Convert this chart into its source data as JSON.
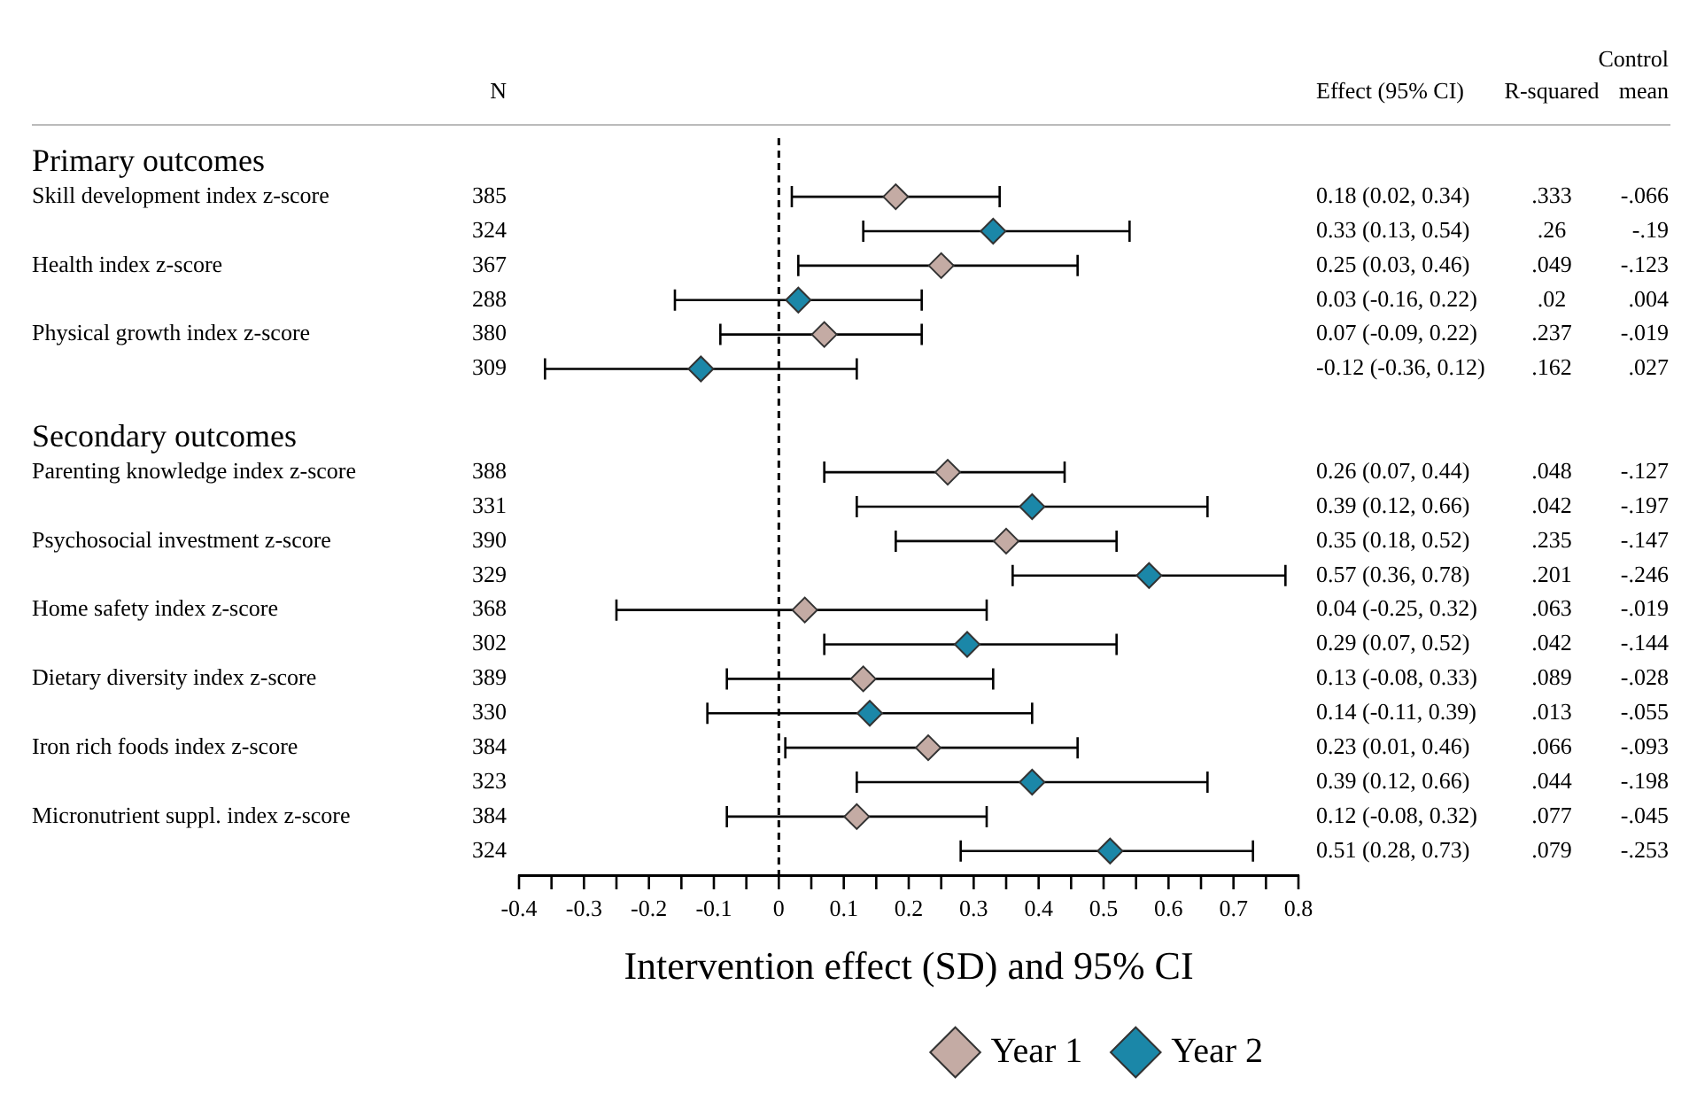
{
  "chart_data": {
    "type": "scatter",
    "orientation": "horizontal",
    "xlabel": "Intervention effect (SD) and 95% CI",
    "marker": "diamond",
    "legend": "bottom right",
    "categories": [
      null,
      "Skill development index z-score",
      null,
      "Health index z-score",
      null,
      "Physical growth index z-score",
      null,
      null,
      null,
      "Parenting knowledge index z-score",
      null,
      "Psychosocial investment z-score",
      null,
      "Home safety index z-score",
      null,
      "Dietary diversity index z-score",
      null,
      "Iron rich foods index z-score",
      null,
      "Micronutrient suppl. index z-score",
      null
    ],
    "series": [
      {
        "name": "Year 1",
        "color": "#c4aba4",
        "values": [
          null,
          0.18,
          null,
          0.25,
          null,
          0.07,
          null,
          null,
          null,
          0.26,
          null,
          0.35,
          null,
          0.04,
          null,
          0.13,
          null,
          0.23,
          null,
          0.12,
          null
        ],
        "errors": [
          null,
          [
            0.02,
            0.34
          ],
          null,
          [
            0.03,
            0.46
          ],
          null,
          [
            -0.09,
            0.22
          ],
          null,
          null,
          null,
          [
            0.07,
            0.44
          ],
          null,
          [
            0.18,
            0.52
          ],
          null,
          [
            -0.25,
            0.32
          ],
          null,
          [
            -0.08,
            0.33
          ],
          null,
          [
            0.01,
            0.46
          ],
          null,
          [
            -0.08,
            0.32
          ],
          null
        ]
      },
      {
        "name": "Year 2",
        "color": "#1b87a8",
        "values": [
          null,
          null,
          0.33,
          null,
          0.03,
          null,
          -0.12,
          null,
          null,
          null,
          0.39,
          null,
          0.57,
          null,
          0.29,
          null,
          0.14,
          null,
          0.39,
          null,
          0.51
        ],
        "errors": [
          null,
          null,
          [
            0.13,
            0.54
          ],
          null,
          [
            -0.16,
            0.22
          ],
          null,
          [
            -0.36,
            0.12
          ],
          null,
          null,
          null,
          [
            0.12,
            0.66
          ],
          null,
          [
            0.36,
            0.78
          ],
          null,
          [
            0.07,
            0.52
          ],
          null,
          [
            -0.11,
            0.39
          ],
          null,
          [
            0.12,
            0.66
          ],
          null,
          [
            0.28,
            0.73
          ]
        ]
      }
    ],
    "xlim": [
      -0.4,
      0.8
    ],
    "xticks": [
      -0.4,
      {
        "value": -0.35,
        "label": null
      },
      -0.3,
      {
        "value": -0.25,
        "label": null
      },
      -0.2,
      {
        "value": -0.15,
        "label": null
      },
      -0.1,
      {
        "value": -0.05,
        "label": null
      },
      0,
      {
        "value": 0.05,
        "label": null
      },
      0.1,
      {
        "value": 0.15,
        "label": null
      },
      0.2,
      {
        "value": 0.25,
        "label": null
      },
      0.3,
      {
        "value": 0.35,
        "label": null
      },
      0.4,
      {
        "value": 0.45,
        "label": null
      },
      0.5,
      {
        "value": 0.55,
        "label": null
      },
      0.6,
      {
        "value": 0.65,
        "label": null
      },
      0.7,
      {
        "value": 0.75,
        "label": null
      },
      0.8
    ],
    "ref_lines": [
      {
        "axis": "x",
        "value": 0,
        "line_style": "dashed"
      }
    ],
    "annotations": [
      "N",
      "Effect (95% CI)",
      "R-squared",
      "Control mean",
      "Primary outcomes",
      "385",
      "0.18 (0.02, 0.34)",
      ".333",
      "-.066",
      "324",
      "0.33 (0.13, 0.54)",
      ".26",
      "-.19",
      "367",
      "0.25 (0.03, 0.46)",
      ".049",
      "-.123",
      "288",
      "0.03 (-0.16, 0.22)",
      ".02",
      ".004",
      "380",
      "0.07 (-0.09, 0.22)",
      ".237",
      "-.019",
      "309",
      "-0.12 (-0.36, 0.12)",
      ".162",
      ".027",
      "Secondary outcomes",
      "388",
      "0.26 (0.07, 0.44)",
      ".048",
      "-.127",
      "331",
      "0.39 (0.12, 0.66)",
      ".042",
      "-.197",
      "390",
      "0.35 (0.18, 0.52)",
      ".235",
      "-.147",
      "329",
      "0.57 (0.36, 0.78)",
      ".201",
      "-.246",
      "368",
      "0.04 (-0.25, 0.32)",
      ".063",
      "-.019",
      "302",
      "0.29 (0.07, 0.52)",
      ".042",
      "-.144",
      "389",
      "0.13 (-0.08, 0.33)",
      ".089",
      "-.028",
      "330",
      "0.14 (-0.11, 0.39)",
      ".013",
      "-.055",
      "384",
      "0.23 (0.01, 0.46)",
      ".066",
      "-.093",
      "323",
      "0.39 (0.12, 0.66)",
      ".044",
      "-.198",
      "384",
      "0.12 (-0.08, 0.32)",
      ".077",
      "-.045",
      "324",
      "0.51 (0.28, 0.73)",
      ".079",
      "-.253"
    ]
  }
}
